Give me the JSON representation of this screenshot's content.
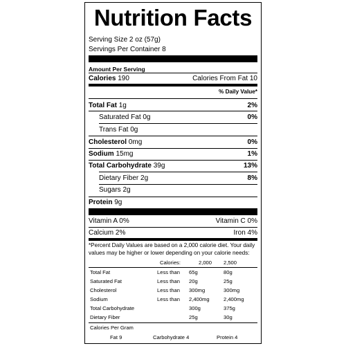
{
  "title": "Nutrition Facts",
  "serving": {
    "size": "Serving Size  2 oz (57g)",
    "per_container": "Servings Per Container 8"
  },
  "amount_per_serving": "Amount Per Serving",
  "calories": {
    "label": "Calories",
    "value": "190",
    "from_fat": "Calories From Fat 10"
  },
  "daily_value_header": "% Daily Value*",
  "nutrients": [
    {
      "name": "Total Fat",
      "amount": "1g",
      "dv": "2%"
    },
    {
      "name": "Saturated Fat",
      "amount": "0g",
      "dv": "0%"
    },
    {
      "name": "Trans Fat",
      "amount": "0g",
      "dv": ""
    },
    {
      "name": "Cholesterol",
      "amount": "0mg",
      "dv": "0%"
    },
    {
      "name": "Sodium",
      "amount": "15mg",
      "dv": "1%"
    },
    {
      "name": "Total Carbohydrate",
      "amount": "39g",
      "dv": "13%"
    },
    {
      "name": "Dietary Fiber",
      "amount": "2g",
      "dv": "8%"
    },
    {
      "name": "Sugars",
      "amount": "2g",
      "dv": ""
    },
    {
      "name": "Protein",
      "amount": "9g",
      "dv": ""
    }
  ],
  "vitamins": [
    {
      "left": "Vitamin A 0%",
      "right": "Vitamin C 0%"
    },
    {
      "left": "Calcium 2%",
      "right": "Iron 4%"
    }
  ],
  "footnote": "*Percent Daily Values are based on a 2,000 calorie diet. Your daily values may be higher or lower depending on your calorie needs:",
  "dv_table": {
    "header": {
      "label": "Calories:",
      "c2000": "2,000",
      "c2500": "2,500"
    },
    "rows": [
      {
        "name": "Total Fat",
        "cmp": "Less than",
        "c2000": "65g",
        "c2500": "80g"
      },
      {
        "name": "Saturated Fat",
        "cmp": "Less than",
        "c2000": "20g",
        "c2500": "25g"
      },
      {
        "name": "Cholesterol",
        "cmp": "Less than",
        "c2000": "300mg",
        "c2500": "300mg"
      },
      {
        "name": "Sodium",
        "cmp": "Less than",
        "c2000": "2,400mg",
        "c2500": "2,400mg"
      },
      {
        "name": "Total Carbohydrate",
        "cmp": "",
        "c2000": "300g",
        "c2500": "375g"
      },
      {
        "name": "Dietary Fiber",
        "cmp": "",
        "c2000": "25g",
        "c2500": "30g"
      }
    ]
  },
  "calories_per_gram": {
    "label": "Calories Per Gram",
    "fat": "Fat 9",
    "carbohydrate": "Carbohydrate 4",
    "protein": "Protein 4"
  }
}
